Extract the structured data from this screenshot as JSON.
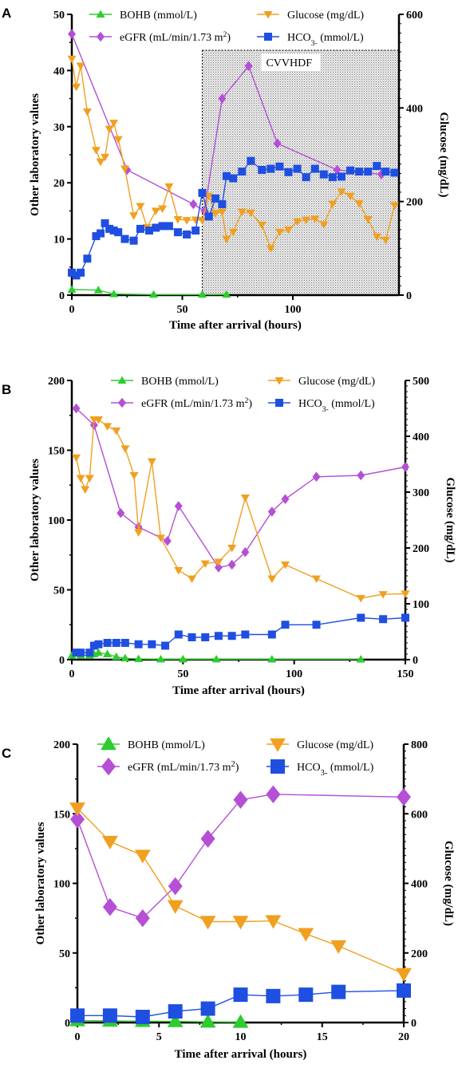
{
  "colors": {
    "bohb": "#2ecc2e",
    "egfr": "#b54fd6",
    "glucose": "#f0a020",
    "hco3": "#1f4fe0"
  },
  "chart_data": [
    {
      "type": "line",
      "panel": "A",
      "xlabel": "Time after arrival (hours)",
      "ylabel": "Other laboratory  values",
      "y2label": "Glucose (mg/dL)",
      "xlim": [
        0,
        148
      ],
      "xticks": [
        "0",
        "50",
        "100"
      ],
      "xtick_values": [
        0,
        50,
        100
      ],
      "ylim": [
        0,
        50
      ],
      "yticks": [
        "0",
        "10",
        "20",
        "30",
        "40",
        "50"
      ],
      "ytick_values": [
        0,
        10,
        20,
        30,
        40,
        50
      ],
      "y2lim": [
        0,
        600
      ],
      "y2ticks": [
        "0",
        "200",
        "400",
        "600"
      ],
      "y2tick_values": [
        0,
        200,
        400,
        600
      ],
      "annotation": {
        "label": "CVVHDF",
        "x_start": 59,
        "x_end": 148
      },
      "series": [
        {
          "key": "bohb",
          "name": "BOHB (mmol/L)",
          "axis": "left",
          "marker": "triangle-up",
          "x": [
            0,
            12,
            19,
            37,
            59,
            70
          ],
          "y": [
            1.0,
            0.9,
            0.2,
            0.1,
            0.1,
            0.1
          ]
        },
        {
          "key": "egfr",
          "name": "eGFR (mL/min/1.73 m²)",
          "axis": "left",
          "marker": "diamond",
          "x": [
            0,
            25,
            55,
            60,
            68,
            80,
            93,
            120,
            140
          ],
          "y": [
            46.5,
            22.3,
            16.2,
            15.0,
            35.0,
            40.8,
            27.0,
            22.3,
            21.5
          ]
        },
        {
          "key": "glucose",
          "name": "Glucose (mg/dL)",
          "axis": "right",
          "marker": "triangle-down",
          "x": [
            0,
            2,
            4,
            7,
            11,
            13,
            15,
            17,
            19,
            21,
            24,
            28,
            31,
            34,
            38,
            41,
            44,
            48,
            52,
            56,
            59,
            62,
            65,
            68,
            70,
            73,
            77,
            81,
            86,
            90,
            94,
            98,
            102,
            106,
            110,
            114,
            118,
            122,
            126,
            130,
            134,
            138,
            142,
            146
          ],
          "y": [
            505,
            445,
            490,
            392,
            310,
            285,
            295,
            355,
            368,
            333,
            270,
            170,
            190,
            145,
            180,
            185,
            232,
            162,
            160,
            161,
            160,
            212,
            175,
            178,
            120,
            135,
            178,
            176,
            150,
            100,
            135,
            140,
            157,
            161,
            163,
            151,
            195,
            221,
            212,
            196,
            162,
            125,
            118,
            192
          ]
        },
        {
          "key": "hco3",
          "name": "HCO3- (mmol/L)",
          "axis": "left",
          "marker": "square",
          "x": [
            0,
            2,
            4,
            7,
            11,
            13,
            15,
            17,
            19,
            21,
            24,
            28,
            31,
            35,
            38,
            41,
            44,
            48,
            52,
            56,
            59,
            62,
            65,
            68,
            70,
            73,
            77,
            81,
            86,
            90,
            94,
            98,
            102,
            106,
            110,
            114,
            118,
            122,
            126,
            130,
            134,
            138,
            142,
            146
          ],
          "y": [
            4.0,
            3.5,
            4.0,
            6.5,
            10.5,
            11.0,
            12.8,
            11.8,
            11.5,
            11.2,
            10.0,
            9.7,
            11.8,
            11.5,
            12.0,
            12.3,
            12.3,
            11.2,
            10.8,
            11.5,
            18.2,
            14.0,
            17.2,
            16.2,
            21.2,
            20.8,
            22.0,
            23.9,
            22.3,
            22.5,
            22.9,
            21.9,
            22.5,
            21.0,
            22.5,
            21.5,
            21.0,
            21.1,
            22.2,
            22.0,
            22.0,
            23.0,
            22.0,
            21.8
          ]
        }
      ]
    },
    {
      "type": "line",
      "panel": "B",
      "xlabel": "Time after arrival (hours)",
      "ylabel": "Other laboratory  values",
      "y2label": "Glucose (mg/dL)",
      "xlim": [
        0,
        150
      ],
      "xticks": [
        "0",
        "50",
        "100",
        "150"
      ],
      "xtick_values": [
        0,
        50,
        100,
        150
      ],
      "ylim": [
        0,
        200
      ],
      "yticks": [
        "0",
        "50",
        "100",
        "150",
        "200"
      ],
      "ytick_values": [
        0,
        50,
        100,
        150,
        200
      ],
      "y2lim": [
        0,
        500
      ],
      "y2ticks": [
        "0",
        "100",
        "200",
        "300",
        "400",
        "500"
      ],
      "y2tick_values": [
        0,
        100,
        200,
        300,
        400,
        500
      ],
      "series": [
        {
          "key": "bohb",
          "name": "BOHB (mmol/L)",
          "axis": "left",
          "marker": "triangle-up",
          "x": [
            0,
            4,
            8,
            10,
            12,
            16,
            20,
            24,
            30,
            40,
            50,
            65,
            90,
            130
          ],
          "y": [
            3,
            3,
            3,
            4,
            5,
            4,
            2,
            1,
            0.5,
            0.3,
            0.3,
            0.3,
            0.2,
            0.2
          ]
        },
        {
          "key": "egfr",
          "name": "eGFR (mL/min/1.73 m²)",
          "axis": "left",
          "marker": "diamond",
          "x": [
            2,
            10,
            22,
            30,
            43,
            48,
            66,
            72,
            78,
            90,
            96,
            110,
            130,
            150
          ],
          "y": [
            180,
            168,
            105,
            95,
            85,
            110,
            66,
            68,
            77,
            106,
            115,
            131,
            132,
            138
          ]
        },
        {
          "key": "glucose",
          "name": "Glucose (mg/dL)",
          "axis": "right",
          "marker": "triangle-down",
          "x": [
            2,
            4,
            6,
            8,
            10,
            12,
            16,
            20,
            24,
            28,
            30,
            36,
            40,
            48,
            54,
            60,
            66,
            72,
            78,
            90,
            96,
            110,
            130,
            140,
            150
          ],
          "y": [
            362,
            325,
            305,
            325,
            430,
            430,
            418,
            410,
            378,
            330,
            228,
            355,
            218,
            160,
            145,
            172,
            175,
            200,
            290,
            145,
            170,
            145,
            110,
            117,
            118
          ]
        },
        {
          "key": "hco3",
          "name": "HCO3- (mmol/L)",
          "axis": "left",
          "marker": "square",
          "x": [
            2,
            4,
            8,
            10,
            12,
            16,
            20,
            24,
            30,
            36,
            42,
            48,
            54,
            60,
            66,
            72,
            78,
            90,
            96,
            110,
            130,
            140,
            150
          ],
          "y": [
            5,
            5,
            5,
            10,
            11,
            12,
            12,
            12,
            11,
            11,
            10,
            18,
            16,
            16,
            17,
            17,
            18,
            18,
            25,
            25,
            30,
            29,
            30
          ]
        }
      ]
    },
    {
      "type": "line",
      "panel": "C",
      "xlabel": "Time after arrival (hours)",
      "ylabel": "Other laboratory  values",
      "y2label": "Glucose (mg/dL)",
      "xlim": [
        0,
        20
      ],
      "xticks": [
        "0",
        "5",
        "10",
        "15",
        "20"
      ],
      "xtick_values": [
        0,
        5,
        10,
        15,
        20
      ],
      "ylim": [
        0,
        200
      ],
      "yticks": [
        "0",
        "50",
        "100",
        "150",
        "200"
      ],
      "ytick_values": [
        0,
        50,
        100,
        150,
        200
      ],
      "y2lim": [
        0,
        800
      ],
      "y2ticks": [
        "0",
        "200",
        "400",
        "600",
        "800"
      ],
      "y2tick_values": [
        0,
        200,
        400,
        600,
        800
      ],
      "series": [
        {
          "key": "bohb",
          "name": "BOHB (mmol/L)",
          "axis": "left",
          "marker": "triangle-up",
          "x": [
            0,
            2,
            4,
            6,
            8,
            10
          ],
          "y": [
            1.5,
            1.2,
            1.0,
            0.8,
            0.5,
            0.3
          ]
        },
        {
          "key": "egfr",
          "name": "eGFR (mL/min/1.73 m²)",
          "axis": "left",
          "marker": "diamond",
          "x": [
            0,
            2,
            4,
            6,
            8,
            10,
            12,
            20
          ],
          "y": [
            146,
            83,
            75,
            98,
            132,
            160,
            164,
            162
          ]
        },
        {
          "key": "glucose",
          "name": "Glucose (mg/dL)",
          "axis": "right",
          "marker": "triangle-down",
          "x": [
            0,
            2,
            4,
            6,
            8,
            10,
            12,
            14,
            16,
            20
          ],
          "y": [
            616,
            520,
            480,
            335,
            290,
            290,
            292,
            255,
            220,
            140
          ]
        },
        {
          "key": "hco3",
          "name": "HCO3- (mmol/L)",
          "axis": "left",
          "marker": "square",
          "x": [
            0,
            2,
            4,
            6,
            8,
            10,
            12,
            14,
            16,
            20
          ],
          "y": [
            5,
            5,
            4,
            8,
            10,
            20,
            19,
            20,
            22,
            23
          ]
        }
      ]
    }
  ]
}
